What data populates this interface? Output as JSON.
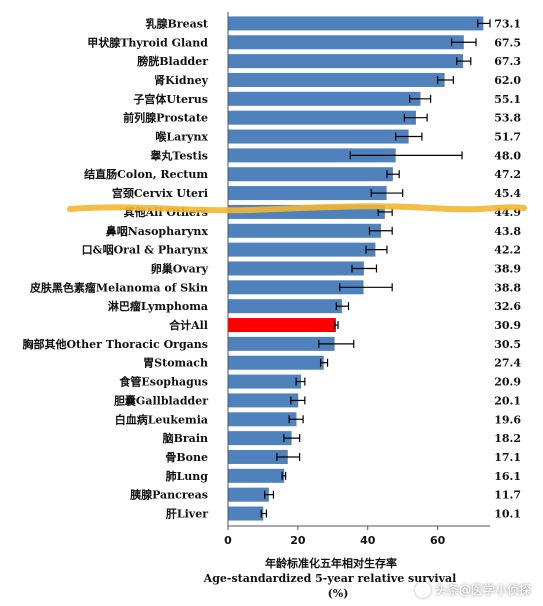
{
  "chart_data": {
    "type": "bar",
    "orientation": "horizontal",
    "categories": [
      "乳腺Breast",
      "甲状腺Thyroid Gland",
      "膀胱Bladder",
      "肾Kidney",
      "子宫体Uterus",
      "前列腺Prostate",
      "喉Larynx",
      "睾丸Testis",
      "结直肠Colon, Rectum",
      "宫颈Cervix Uteri",
      "其他All Others",
      "鼻咽Nasopharynx",
      "口&咽Oral & Pharynx",
      "卵巢Ovary",
      "皮肤黑色素瘤Melanoma of Skin",
      "淋巴瘤Lymphoma",
      "合计All",
      "胸部其他Other Thoracic Organs",
      "胃Stomach",
      "食管Esophagus",
      "胆囊Gallbladder",
      "白血病Leukemia",
      "脑Brain",
      "骨Bone",
      "肺Lung",
      "胰腺Pancreas",
      "肝Liver"
    ],
    "value_labels": [
      "73.1",
      "67.5",
      "67.3",
      "62.0",
      "55.1",
      "53.8",
      "51.7",
      "48.0",
      "47.2",
      "45.4",
      "44.9",
      "43.8",
      "42.2",
      "38.9",
      "38.8",
      "32.6",
      "30.9",
      "30.5",
      "27.4",
      "20.9",
      "20.1",
      "19.6",
      "18.2",
      "17.1",
      "16.1",
      "11.7",
      "10.1"
    ],
    "values": [
      73.1,
      67.5,
      67.3,
      62.0,
      55.1,
      53.8,
      51.7,
      48.0,
      47.2,
      45.4,
      44.9,
      43.8,
      42.2,
      38.9,
      38.8,
      32.6,
      30.9,
      30.5,
      27.4,
      20.9,
      20.1,
      19.6,
      18.2,
      17.1,
      16.1,
      11.7,
      10.1
    ],
    "error_low": [
      71.5,
      64,
      65.5,
      60,
      52,
      50.5,
      48,
      35,
      45.5,
      41,
      43,
      40.5,
      39.5,
      35.5,
      32,
      31,
      30.5,
      26,
      26.5,
      19.5,
      18,
      17.5,
      16,
      14,
      15.5,
      10.5,
      9.5
    ],
    "error_high": [
      75,
      71,
      69.5,
      64.5,
      58,
      57,
      55.5,
      67,
      49,
      50,
      47,
      47,
      45.5,
      42.5,
      47,
      34.5,
      31.5,
      36,
      28.5,
      22,
      22,
      21.5,
      20.5,
      20.5,
      16.5,
      13,
      11
    ],
    "highlight_category": "合计All",
    "xlim": [
      0,
      75
    ],
    "xticks": [
      "0",
      "20",
      "40",
      "60"
    ],
    "xticks_values": [
      0,
      20,
      40,
      60
    ],
    "xlabel_cn": "年龄标准化五年相对生存率",
    "xlabel_en": "Age-standardized 5-year relative survival",
    "xlabel_unit": "(%)",
    "colors": {
      "bar": "#4f81bd",
      "highlight": "#ff0000",
      "error_bar": "#000000",
      "hand_line": "#f2b632"
    },
    "annotation": "hand-drawn yellow line separating top 10 categories"
  },
  "watermark": {
    "text": "头条@医学小侦探"
  }
}
